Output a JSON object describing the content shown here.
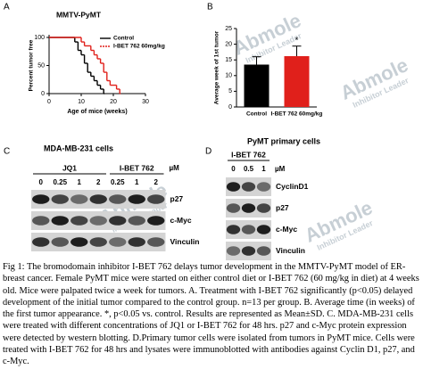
{
  "panels": [
    "A",
    "B",
    "C",
    "D"
  ],
  "watermark": {
    "brand": "Abmole",
    "tagline": "Inhibitor Leader"
  },
  "chart_data": [
    {
      "type": "step",
      "title": "MMTV-PyMT",
      "x_label": "Age of mice (weeks)",
      "y_label": "Percent tumor free",
      "xlim": [
        0,
        30
      ],
      "ylim": [
        0,
        100
      ],
      "xticks": [
        0,
        10,
        20,
        30
      ],
      "yticks": [
        0,
        50,
        100
      ],
      "legend": "upper right",
      "series": [
        {
          "name": "Control",
          "color": "#000000",
          "x": [
            0,
            8,
            9,
            10,
            11,
            12,
            13,
            14,
            15,
            16,
            17
          ],
          "values": [
            100,
            92,
            77,
            69,
            54,
            38,
            31,
            23,
            15,
            8,
            0
          ]
        },
        {
          "name": "I-BET 762 60mg/kg",
          "color": "#e0201b",
          "x": [
            0,
            10,
            11,
            13,
            14,
            15,
            16,
            17,
            18,
            19,
            21,
            22
          ],
          "values": [
            100,
            92,
            85,
            77,
            69,
            62,
            54,
            38,
            23,
            15,
            8,
            0
          ]
        }
      ]
    },
    {
      "type": "bar",
      "y_label": "Average week of 1st tumor",
      "annotation": "*",
      "ylim": [
        0,
        25
      ],
      "yticks": [
        0,
        5,
        10,
        15,
        20,
        25
      ],
      "categories": [
        "Control",
        "I-BET 762 60mg/kg"
      ],
      "values": [
        13.5,
        16.2
      ],
      "errors": [
        2.5,
        3.2
      ],
      "colors": [
        "#000000",
        "#e0201b"
      ]
    }
  ],
  "blots": [
    {
      "title": "MDA-MB-231 cells",
      "unit": "µM",
      "groups": [
        {
          "name": "JQ1",
          "lanes": [
            "0",
            "0.25",
            "1",
            "2"
          ]
        },
        {
          "name": "I-BET 762",
          "lanes": [
            "0.25",
            "1",
            "2"
          ]
        }
      ],
      "rows": [
        "p27",
        "c-Myc",
        "Vinculin"
      ]
    },
    {
      "title": "PyMT primary cells",
      "unit": "µM",
      "groups": [
        {
          "name": "I-BET 762",
          "lanes": [
            "0",
            "0.5",
            "1"
          ]
        }
      ],
      "rows": [
        "CyclinD1",
        "p27",
        "c-Myc",
        "Vinculin"
      ]
    }
  ],
  "caption": "Fig 1: The bromodomain inhibitor I-BET 762 delays tumor development in the MMTV-PyMT model of ER- breast cancer. Female PyMT mice were started on either control diet or I-BET 762 (60 mg/kg in diet) at 4 weeks old. Mice were palpated twice a week for tumors. A. Treatment with I-BET 762 significantly (p<0.05) delayed development of the initial tumor compared to the control group. n=13 per group. B. Average time (in weeks) of the first tumor appearance. *, p<0.05 vs. control. Results are represented as Mean±SD. C. MDA-MB-231 cells were treated with different concentrations of JQ1 or I-BET 762 for 48 hrs. p27 and c-Myc protein expression were detected by western blotting. D.Primary tumor cells were isolated from tumors in PyMT mice. Cells were treated with I-BET 762 for 48 hrs and lysates were immunoblotted with antibodies against Cyclin D1, p27, and c-Myc."
}
